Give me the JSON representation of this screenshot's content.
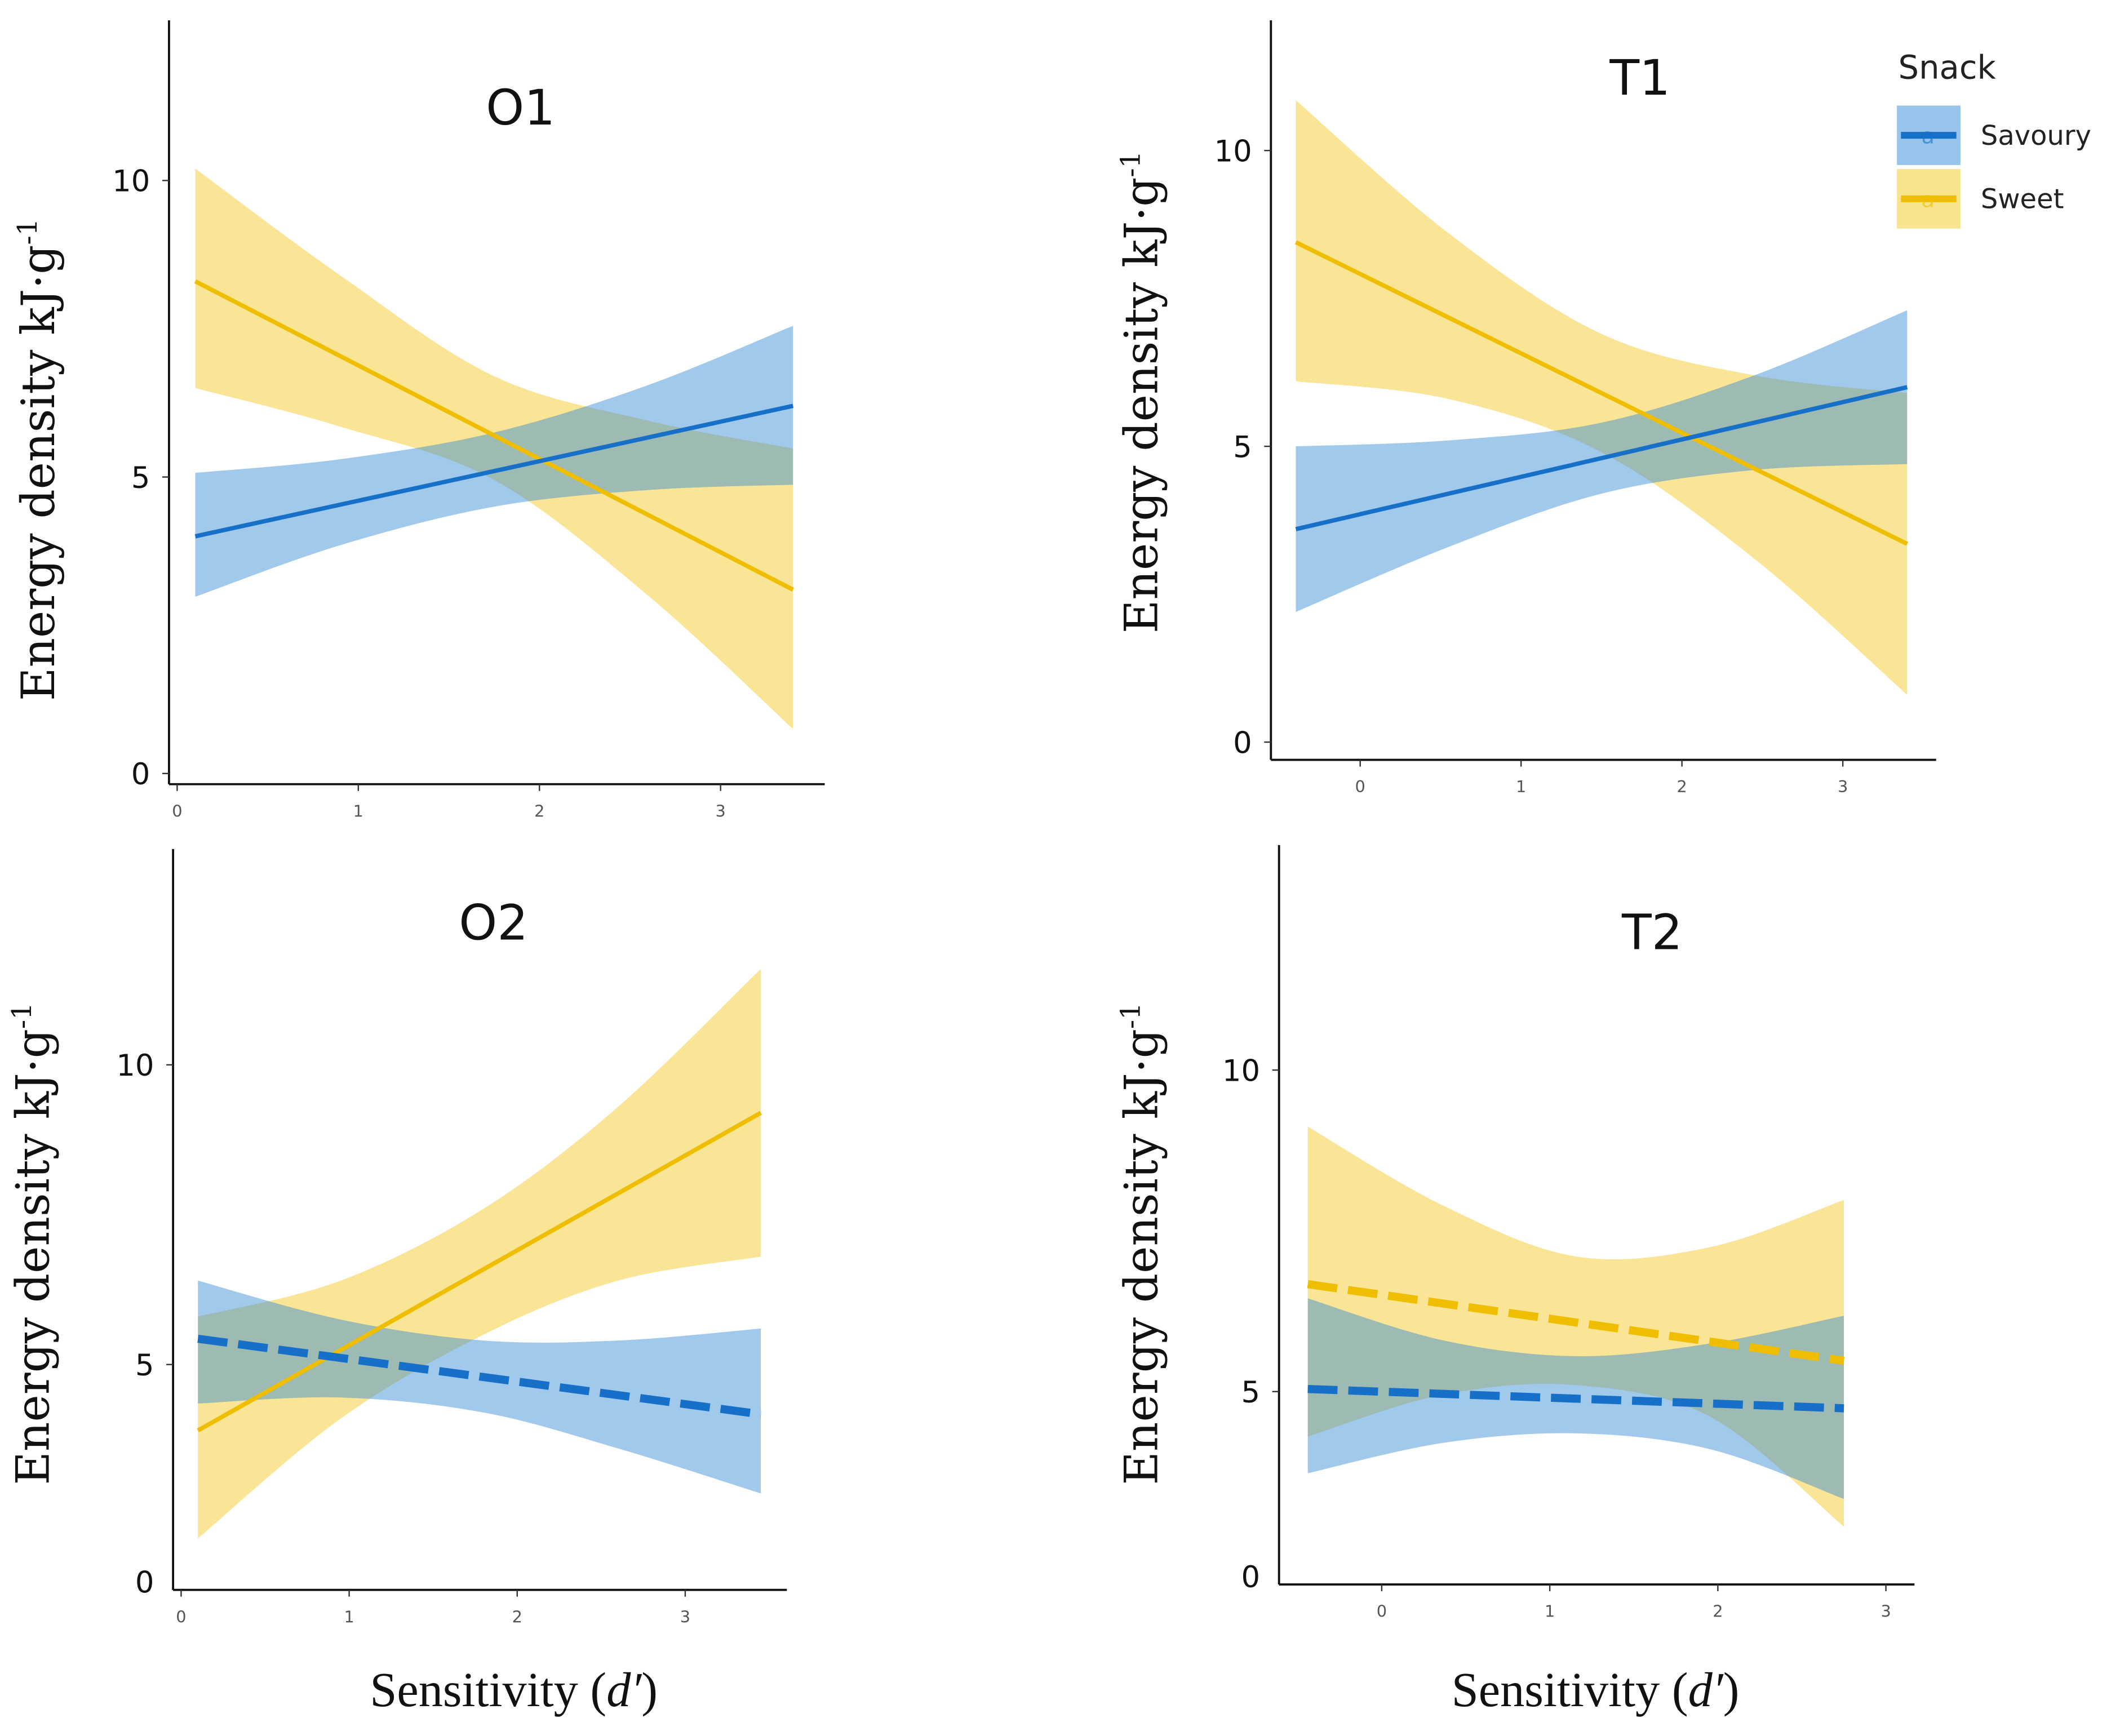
{
  "colors": {
    "sweet_line": "#f0be00",
    "sweet_fill": "#f2c81e",
    "savoury_line": "#1670c8",
    "savoury_fill": "#2f8ad6"
  },
  "chart_data": [
    {
      "id": "O1",
      "type": "line",
      "title": "O1",
      "ylabel": "Energy density  kJ·g",
      "ylabel_sup": "-1",
      "xlabel": null,
      "x_ticks": [
        0,
        1,
        2,
        3
      ],
      "x_tick_labels": [
        "0",
        "1",
        "2",
        "3"
      ],
      "y_ticks": [
        0,
        5,
        10
      ],
      "y_tick_labels": [
        "0",
        "5",
        "10"
      ],
      "xlim": [
        -0.045,
        3.575
      ],
      "ylim": [
        -0.18,
        12.7
      ],
      "series": [
        {
          "name": "Sweet",
          "linestyle": "solid",
          "x": [
            0.1,
            0.9,
            1.75,
            2.6,
            3.4
          ],
          "fit": [
            8.3,
            7.04,
            5.7,
            4.36,
            3.1
          ],
          "ci_upper": [
            10.2,
            8.4,
            6.7,
            5.95,
            5.48
          ],
          "ci_lower": [
            6.5,
            5.85,
            4.95,
            3.0,
            0.75
          ]
        },
        {
          "name": "Savoury",
          "linestyle": "solid",
          "x": [
            0.1,
            0.9,
            1.75,
            2.6,
            3.4
          ],
          "fit": [
            4.0,
            4.53,
            5.1,
            5.67,
            6.2
          ],
          "ci_upper": [
            5.07,
            5.3,
            5.75,
            6.55,
            7.55
          ],
          "ci_lower": [
            2.98,
            3.85,
            4.5,
            4.78,
            4.87
          ]
        }
      ]
    },
    {
      "id": "T1",
      "type": "line",
      "title": "T1",
      "ylabel": "Energy density  kJ·g",
      "ylabel_sup": "-1",
      "xlabel": null,
      "x_ticks": [
        0,
        1,
        2,
        3
      ],
      "x_tick_labels": [
        "0",
        "1",
        "2",
        "3"
      ],
      "y_ticks": [
        0,
        5,
        10
      ],
      "y_tick_labels": [
        "0",
        "5",
        "10"
      ],
      "xlim": [
        -0.555,
        3.58
      ],
      "ylim": [
        -0.3,
        12.2
      ],
      "legend": {
        "title": "Snack",
        "position": "top-right",
        "items": [
          {
            "label": "Savoury",
            "key": "savoury"
          },
          {
            "label": "Sweet",
            "key": "sweet"
          }
        ],
        "key_glyph": "a"
      },
      "series": [
        {
          "name": "Sweet",
          "linestyle": "solid",
          "x": [
            -0.4,
            0.55,
            1.5,
            2.45,
            3.4
          ],
          "fit": [
            8.45,
            7.18,
            5.9,
            4.63,
            3.35
          ],
          "ci_upper": [
            10.85,
            8.6,
            6.9,
            6.2,
            5.9
          ],
          "ci_lower": [
            6.1,
            5.8,
            4.9,
            3.1,
            0.8
          ]
        },
        {
          "name": "Savoury",
          "linestyle": "solid",
          "x": [
            -0.4,
            0.55,
            1.5,
            2.45,
            3.4
          ],
          "fit": [
            3.6,
            4.2,
            4.8,
            5.4,
            6.0
          ],
          "ci_upper": [
            5.0,
            5.1,
            5.4,
            6.2,
            7.3
          ],
          "ci_lower": [
            2.2,
            3.3,
            4.2,
            4.6,
            4.7
          ]
        }
      ]
    },
    {
      "id": "O2",
      "type": "line",
      "title": "O2",
      "ylabel": "Energy density  kJ·g",
      "ylabel_sup": "-1",
      "xlabel": "Sensitivity (",
      "xlabel_italic": "d′",
      "xlabel_end": ")",
      "x_ticks": [
        0,
        1,
        2,
        3
      ],
      "x_tick_labels": [
        "0",
        "1",
        "2",
        "3"
      ],
      "y_ticks": [
        0,
        5,
        10
      ],
      "y_tick_labels": [
        "0",
        "5",
        "10"
      ],
      "xlim": [
        -0.048,
        3.605
      ],
      "ylim": [
        1.24,
        13.6
      ],
      "series": [
        {
          "name": "Sweet",
          "linestyle": "solid",
          "x": [
            0.1,
            0.95,
            1.8,
            2.6,
            3.45
          ],
          "fit": [
            3.9,
            5.24,
            6.59,
            7.85,
            9.2
          ],
          "ci_upper": [
            5.8,
            6.4,
            7.6,
            9.3,
            11.6
          ],
          "ci_lower": [
            2.1,
            4.1,
            5.5,
            6.4,
            6.8
          ]
        },
        {
          "name": "Savoury",
          "linestyle": "dashed",
          "x": [
            0.1,
            0.95,
            1.8,
            2.6,
            3.45
          ],
          "fit": [
            5.43,
            5.11,
            4.79,
            4.49,
            4.17
          ],
          "ci_upper": [
            6.4,
            5.75,
            5.4,
            5.4,
            5.6
          ],
          "ci_lower": [
            4.35,
            4.45,
            4.2,
            3.6,
            2.85
          ]
        }
      ]
    },
    {
      "id": "T2",
      "type": "line",
      "title": "T2",
      "ylabel": "Energy density  kJ·g",
      "ylabel_sup": "-1",
      "xlabel": "Sensitivity (",
      "xlabel_italic": "d′",
      "xlabel_end": ")",
      "x_ticks": [
        0,
        1,
        2,
        3
      ],
      "x_tick_labels": [
        "0",
        "1",
        "2",
        "3"
      ],
      "y_ticks": [
        0,
        5,
        10
      ],
      "y_tick_labels": [
        "0",
        "5",
        "10"
      ],
      "xlim": [
        -0.611,
        3.17
      ],
      "ylim": [
        2.0,
        13.5
      ],
      "series": [
        {
          "name": "Sweet",
          "linestyle": "dashed",
          "x": [
            -0.44,
            0.36,
            1.16,
            1.96,
            2.75
          ],
          "fit": [
            6.67,
            6.37,
            6.07,
            5.78,
            5.48
          ],
          "ci_upper": [
            9.12,
            7.9,
            7.1,
            7.25,
            7.98
          ],
          "ci_lower": [
            4.3,
            4.95,
            5.1,
            4.6,
            2.9
          ]
        },
        {
          "name": "Savoury",
          "linestyle": "dashed",
          "x": [
            -0.44,
            0.36,
            1.16,
            1.96,
            2.75
          ],
          "fit": [
            5.04,
            4.96,
            4.89,
            4.81,
            4.74
          ],
          "ci_upper": [
            6.45,
            5.8,
            5.55,
            5.75,
            6.18
          ],
          "ci_lower": [
            3.73,
            4.2,
            4.35,
            4.1,
            3.33
          ]
        }
      ]
    }
  ]
}
